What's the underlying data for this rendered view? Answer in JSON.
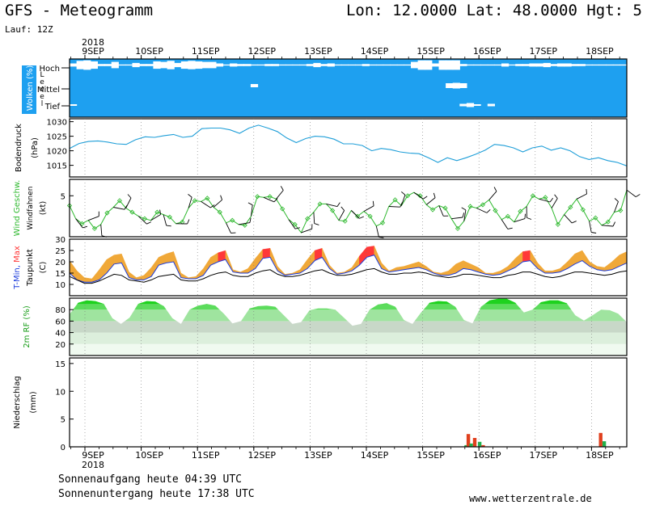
{
  "header": {
    "title": "GFS - Meteogramm",
    "coords": "Lon: 12.0000 Lat: 48.0000 Hgt: 5",
    "run": "Lauf: 12Z"
  },
  "footer": {
    "sunrise": "Sonnenaufgang heute 04:39 UTC",
    "sunset": "Sonnenuntergang heute 17:38 UTC",
    "site": "www.wetterzentrale.de"
  },
  "colors": {
    "cloud_sky": "#1ea0f0",
    "pressure_line": "#1e9ed8",
    "wind_speed": "#2db82d",
    "wind_barb": "#000000",
    "tmax_fill_high": "#ff3838",
    "tmax_fill_low": "#f0a838",
    "tmin_line": "#1c3cdc",
    "dewpoint_line": "#000000",
    "humidity_green": "#1ed21e",
    "precip_red": "#e0401e",
    "precip_green": "#21b14b"
  },
  "chart_data": {
    "type": "meteogram",
    "x_axis": {
      "year": "2018",
      "days": [
        "9SEP",
        "10SEP",
        "11SEP",
        "12SEP",
        "13SEP",
        "14SEP",
        "15SEP",
        "16SEP",
        "17SEP",
        "18SEP"
      ],
      "step_hours": 3,
      "start": "2018-09-09 00 UTC"
    },
    "panels": [
      {
        "id": "clouds",
        "label": "Wolken (%)",
        "sublabel": "Level",
        "levels": [
          "Hoch",
          "Mittel",
          "Tief"
        ],
        "clear_ratio": {
          "hoch": [
            0.3,
            0.8,
            0.9,
            0.7,
            0.2,
            0.2,
            0.6,
            0.1,
            0.1,
            0.4,
            0.2,
            0.2,
            0.7,
            0.6,
            0.8,
            0.4,
            0.7,
            0.8,
            0.7,
            0.6,
            0.6,
            0.3,
            0.1,
            0.3,
            0.2,
            0.2,
            0.1,
            0.1,
            0.2,
            0.2,
            0.1,
            0.1,
            0.1,
            0.1,
            0.2,
            0.4,
            0.2,
            0.3,
            0.1,
            0.1,
            0.1,
            0.1,
            0.2,
            0.1,
            0.1,
            0.1,
            0.1,
            0.1,
            0.1,
            0.6,
            0.9,
            0.9,
            0.3,
            0.9,
            0.9,
            0.9,
            0.2,
            0.1,
            0.1,
            0.1,
            0.1,
            0.1,
            0.3,
            0.1,
            0.2,
            0.2,
            0.3,
            0.3,
            0.4,
            0.2,
            0.3,
            0.3,
            0.2,
            0.2,
            0.1,
            0.1,
            0.1,
            0.1,
            0.1,
            0.1
          ],
          "mittel": [
            0,
            0,
            0,
            0,
            0,
            0,
            0,
            0,
            0,
            0,
            0,
            0,
            0,
            0,
            0,
            0,
            0,
            0,
            0,
            0,
            0,
            0,
            0,
            0,
            0,
            0,
            0.4,
            0,
            0,
            0,
            0,
            0,
            0,
            0,
            0,
            0,
            0,
            0,
            0,
            0,
            0,
            0,
            0,
            0,
            0,
            0,
            0,
            0,
            0,
            0,
            0,
            0,
            0,
            0,
            0.6,
            0.7,
            0.6,
            0,
            0,
            0,
            0,
            0,
            0,
            0,
            0,
            0,
            0,
            0,
            0,
            0,
            0,
            0,
            0,
            0,
            0,
            0,
            0,
            0,
            0,
            0
          ],
          "tief": [
            0.2,
            0,
            0,
            0,
            0,
            0,
            0,
            0,
            0,
            0,
            0,
            0,
            0,
            0,
            0,
            0,
            0,
            0,
            0,
            0,
            0,
            0,
            0,
            0,
            0,
            0,
            0,
            0,
            0,
            0,
            0,
            0,
            0,
            0,
            0,
            0,
            0,
            0,
            0,
            0,
            0,
            0,
            0,
            0,
            0,
            0,
            0,
            0,
            0,
            0,
            0,
            0,
            0,
            0,
            0,
            0,
            0.3,
            0.5,
            0.2,
            0,
            0.3,
            0,
            0,
            0,
            0,
            0,
            0,
            0,
            0,
            0,
            0,
            0,
            0,
            0,
            0,
            0,
            0,
            0,
            0,
            0
          ]
        }
      },
      {
        "id": "pressure",
        "label": "Bodendruck",
        "unit": "(hPa)",
        "ylim": [
          1011,
          1031
        ],
        "ticks": [
          1015,
          1020,
          1025,
          1030
        ],
        "values": [
          1020.8,
          1022.5,
          1023.2,
          1023.4,
          1023.0,
          1022.4,
          1022.2,
          1023.8,
          1024.8,
          1024.6,
          1025.2,
          1025.6,
          1024.6,
          1025.0,
          1027.6,
          1027.8,
          1027.8,
          1027.2,
          1026.0,
          1027.8,
          1028.8,
          1027.8,
          1026.6,
          1024.4,
          1022.8,
          1024.2,
          1025.0,
          1024.8,
          1024.0,
          1022.4,
          1022.4,
          1021.8,
          1020.0,
          1020.8,
          1020.4,
          1019.6,
          1019.2,
          1019.0,
          1017.6,
          1016.0,
          1017.6,
          1016.6,
          1017.6,
          1018.8,
          1020.2,
          1022.2,
          1021.8,
          1021.0,
          1019.6,
          1021.0,
          1021.6,
          1020.2,
          1021.0,
          1020.0,
          1018.0,
          1017.0,
          1017.6,
          1016.6,
          1016.0,
          1014.8
        ]
      },
      {
        "id": "wind",
        "label": "Wind Geschw.",
        "label2": "Windfahnen",
        "unit": "(kt)",
        "ylim": [
          0,
          7
        ],
        "ticks": [
          5
        ],
        "values": [
          3.8,
          2.2,
          1.6,
          2.0,
          1.0,
          1.5,
          2.9,
          3.6,
          4.4,
          3.5,
          3.0,
          2.5,
          2.2,
          2.0,
          3.0,
          2.7,
          2.4,
          1.6,
          1.8,
          3.5,
          4.4,
          4.3,
          4.7,
          3.6,
          3.0,
          1.7,
          2.0,
          1.5,
          1.4,
          2.5,
          4.9,
          4.8,
          4.9,
          4.6,
          3.4,
          2.1,
          1.5,
          0.5,
          2.2,
          3.0,
          4.0,
          4.0,
          3.2,
          2.0,
          1.9,
          3.2,
          2.5,
          3.1,
          2.5,
          1.3,
          1.7,
          3.7,
          4.5,
          3.8,
          5.0,
          5.4,
          5.0,
          3.9,
          3.3,
          3.8,
          3.5,
          2.2,
          1.0,
          1.9,
          3.7,
          3.5,
          3.9,
          4.5,
          3.2,
          2.1,
          2.5,
          1.8,
          3.1,
          3.7,
          5.0,
          4.6,
          4.8,
          3.5,
          1.5,
          2.7,
          3.6,
          4.6,
          3.3,
          1.9,
          2.3,
          1.4,
          1.8,
          3.0,
          3.2,
          5.7
        ]
      },
      {
        "id": "temperature",
        "label": "T-Min, Max",
        "label2": "Taupunkt",
        "unit": "(C)",
        "ylim": [
          5,
          30
        ],
        "ticks": [
          10,
          15,
          20,
          25,
          30
        ],
        "tmax": [
          20.5,
          16,
          13,
          12.5,
          16.5,
          21,
          23,
          23.5,
          15.5,
          13,
          14,
          17.5,
          22,
          23.5,
          24.5,
          15,
          13,
          13.5,
          17,
          22,
          24,
          25,
          16.5,
          15.5,
          17,
          21.5,
          25.5,
          26,
          18,
          14.5,
          15,
          16.5,
          21,
          25,
          26,
          18.5,
          15,
          15.5,
          17.5,
          22.5,
          26.5,
          27,
          19.5,
          16,
          17.5,
          18,
          19,
          20,
          18,
          15.5,
          15,
          16,
          19,
          20.5,
          19,
          17.5,
          15,
          15,
          16,
          18,
          21.5,
          24.5,
          25,
          19.5,
          16,
          16,
          17,
          20,
          23.5,
          25,
          20,
          18,
          17.5,
          20,
          23,
          24.5
        ],
        "tmin": [
          15,
          12,
          11,
          11,
          12,
          15,
          19,
          19.5,
          13,
          12,
          12,
          13.5,
          18.5,
          19.5,
          20,
          13,
          12.5,
          12.5,
          14,
          18.5,
          20,
          21,
          15.5,
          15,
          15,
          17,
          21.5,
          22,
          16,
          14,
          14.5,
          15,
          17,
          20.5,
          22,
          17,
          14.5,
          15,
          16,
          18.5,
          22,
          23,
          17,
          15.5,
          16,
          16.5,
          17,
          17.5,
          16.5,
          15,
          14,
          14,
          15,
          17,
          16.5,
          15.5,
          14.5,
          14,
          14.5,
          16,
          17.5,
          20,
          20.5,
          17,
          15,
          15,
          15.5,
          17,
          19,
          20.5,
          18,
          16.5,
          16,
          16.5,
          18,
          19.5
        ],
        "dewpoint": [
          13.5,
          12,
          10.5,
          10.5,
          11.5,
          13,
          14.5,
          14,
          12,
          11.5,
          11,
          12,
          13.5,
          14,
          14.5,
          12,
          11.5,
          11.5,
          12.5,
          14,
          15,
          15.5,
          14,
          13.5,
          13.5,
          15,
          16,
          16.5,
          14.5,
          13.5,
          13.5,
          14,
          15,
          16,
          16.5,
          15,
          14,
          14,
          14.5,
          15.5,
          16.5,
          17,
          15.5,
          14.5,
          14.5,
          15,
          15,
          15.5,
          15,
          14,
          13.5,
          13,
          13.5,
          14.5,
          14.5,
          14,
          13.5,
          13,
          13,
          14,
          14.5,
          15.5,
          15.5,
          14.5,
          13.5,
          13,
          13.5,
          14.5,
          15.5,
          15.5,
          15,
          14.5,
          14,
          14.5,
          15.5,
          16
        ]
      },
      {
        "id": "humidity",
        "label": "2m RF (%)",
        "ylim": [
          0,
          100
        ],
        "ticks": [
          20,
          40,
          60,
          80
        ],
        "values": [
          72,
          92,
          96,
          95,
          90,
          65,
          55,
          66,
          90,
          95,
          94,
          86,
          65,
          55,
          80,
          87,
          90,
          87,
          73,
          56,
          60,
          82,
          86,
          87,
          85,
          70,
          55,
          58,
          79,
          82,
          82,
          80,
          66,
          52,
          55,
          80,
          89,
          91,
          85,
          62,
          55,
          75,
          92,
          95,
          94,
          85,
          62,
          56,
          85,
          96,
          99,
          99,
          92,
          75,
          80,
          93,
          96,
          96,
          91,
          70,
          61,
          70,
          80,
          79,
          73,
          58
        ],
        "ticks_label": [
          "20",
          "40",
          "60",
          "80"
        ]
      },
      {
        "id": "precip",
        "label": "Niederschlag",
        "unit": "(mm)",
        "ylim": [
          0,
          16
        ],
        "ticks": [
          0,
          5,
          10,
          15
        ],
        "bars": [
          {
            "x": 54.2,
            "value": 0.3,
            "type": "conv"
          },
          {
            "x": 54.5,
            "value": 2.3,
            "type": "large"
          },
          {
            "x": 54.9,
            "value": 0.6,
            "type": "conv"
          },
          {
            "x": 55.4,
            "value": 1.6,
            "type": "large"
          },
          {
            "x": 56.1,
            "value": 0.9,
            "type": "conv"
          },
          {
            "x": 56.6,
            "value": 0.3,
            "type": "large"
          },
          {
            "x": 73.3,
            "value": 2.5,
            "type": "large"
          },
          {
            "x": 73.8,
            "value": 1.0,
            "type": "conv"
          }
        ]
      }
    ]
  }
}
